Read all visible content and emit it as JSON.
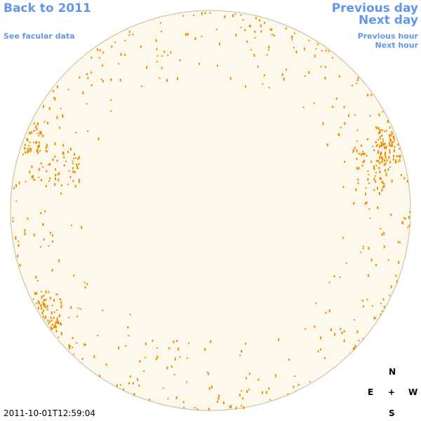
{
  "links": {
    "back": "Back to 2011",
    "facular": "See facular data",
    "previous_day": "Previous day",
    "next_day": "Next day",
    "previous_hour": "Previous hour",
    "next_hour": "Next hour"
  },
  "timestamp": "2011-10-01T12:59:04",
  "compass": {
    "north": "N",
    "east": "E",
    "center": "+",
    "west": "W",
    "south": "S"
  }
}
